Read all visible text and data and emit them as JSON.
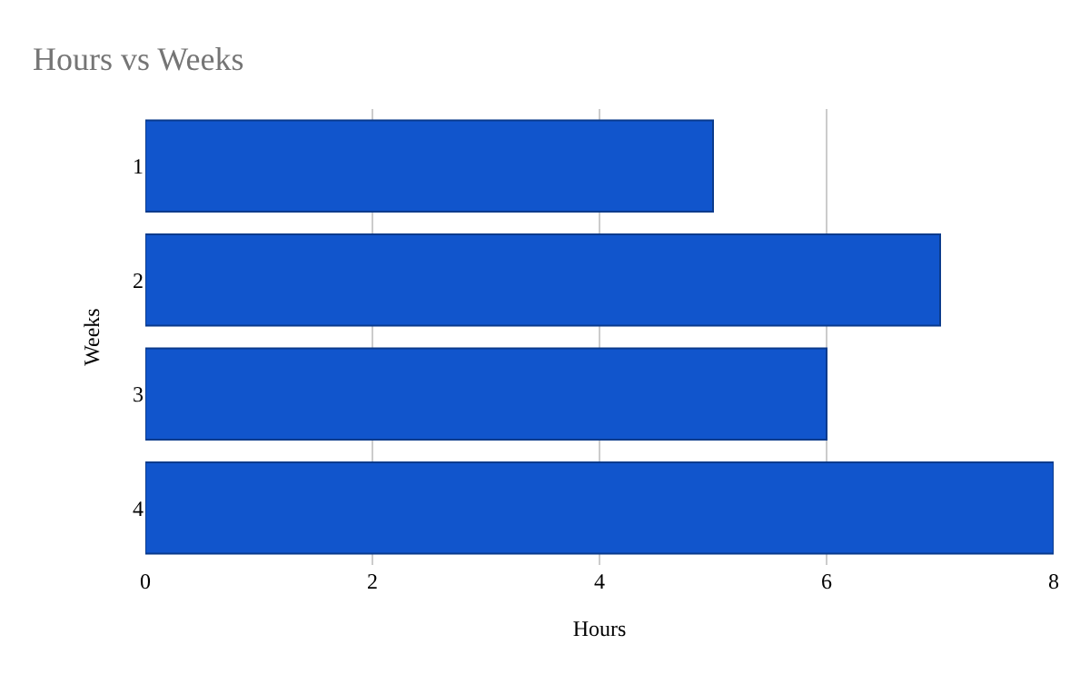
{
  "chart_data": {
    "type": "bar",
    "orientation": "horizontal",
    "title": "Hours vs Weeks",
    "xlabel": "Hours",
    "ylabel": "Weeks",
    "categories": [
      "1",
      "2",
      "3",
      "4"
    ],
    "series": [
      {
        "color": "#1155cc",
        "values": [
          5,
          7,
          6,
          8
        ]
      }
    ],
    "xlim": [
      0,
      8
    ],
    "xticks": [
      0,
      2,
      4,
      6,
      8
    ],
    "grid": "x"
  }
}
